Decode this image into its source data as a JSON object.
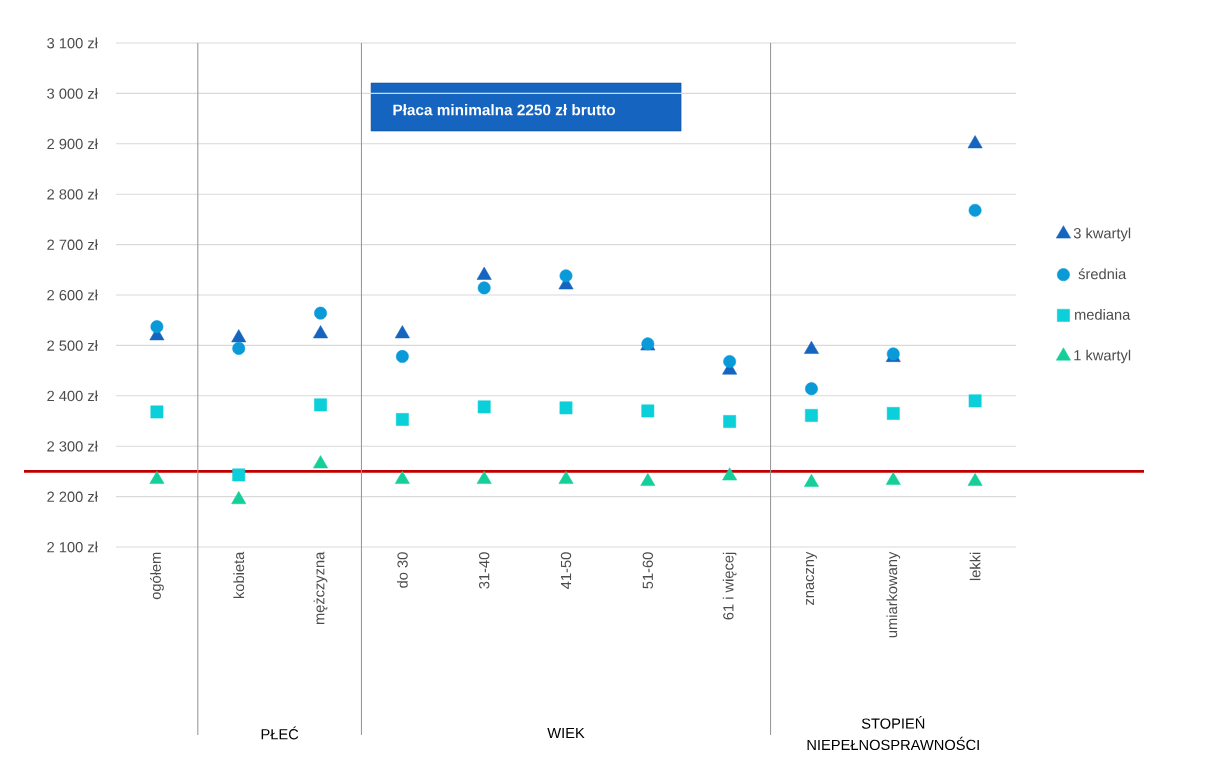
{
  "chart_data": {
    "type": "scatter",
    "categories": [
      "ogółem",
      "kobieta",
      "mężczyzna",
      "do 30",
      "31-40",
      "41-50",
      "51-60",
      "61 i więcej",
      "znaczny",
      "umiarkowany",
      "lekki"
    ],
    "series": [
      {
        "name": "3 kwartyl",
        "color": "#1565c0",
        "marker": "triangle",
        "values": [
          2519,
          2515,
          2523,
          2523,
          2639,
          2620,
          2499,
          2451,
          2492,
          2476,
          2900
        ]
      },
      {
        "name": "średnia",
        "color": "#0a9ad8",
        "marker": "circle",
        "values": [
          2537,
          2494,
          2564,
          2478,
          2614,
          2638,
          2503,
          2468,
          2414,
          2483,
          2768
        ]
      },
      {
        "name": "mediana",
        "color": "#0bd0d9",
        "marker": "square",
        "values": [
          2368,
          2243,
          2382,
          2353,
          2378,
          2376,
          2370,
          2349,
          2361,
          2365,
          2390
        ]
      },
      {
        "name": "1 kwartyl",
        "color": "#14cf9a",
        "marker": "triangle",
        "values": [
          2234,
          2194,
          2265,
          2234,
          2234,
          2234,
          2230,
          2241,
          2228,
          2232,
          2230
        ]
      }
    ],
    "ylim": [
      2100,
      3100
    ],
    "yticks": [
      {
        "value": 2100,
        "label": "2 100 zł"
      },
      {
        "value": 2200,
        "label": "2 200 zł"
      },
      {
        "value": 2300,
        "label": "2 300 zł"
      },
      {
        "value": 2400,
        "label": "2 400 zł"
      },
      {
        "value": 2500,
        "label": "2 500 zł"
      },
      {
        "value": 2600,
        "label": "2 600 zł"
      },
      {
        "value": 2700,
        "label": "2 700 zł"
      },
      {
        "value": 2800,
        "label": "2 800 zł"
      },
      {
        "value": 2900,
        "label": "2 900 zł"
      },
      {
        "value": 3000,
        "label": "3 000 zł"
      },
      {
        "value": 3100,
        "label": "3 100 zł"
      }
    ],
    "ref_lines": [
      {
        "axis": "y",
        "value": 2250,
        "color": "#c00000"
      }
    ],
    "annotations": [
      "Płaca minimalna 2250 zł brutto",
      "PŁEĆ",
      "WIEK",
      "STOPIEŃ NIEPEŁNOSPRAWNOŚCI"
    ],
    "grid": "y",
    "legend": "right"
  }
}
